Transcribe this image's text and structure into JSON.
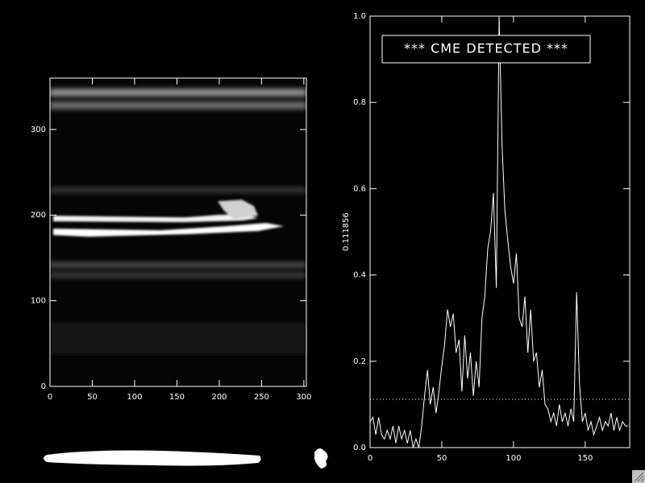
{
  "chart_data": [
    {
      "type": "image",
      "xlim": [
        0,
        303
      ],
      "xticks": [
        0,
        50,
        100,
        150,
        200,
        250,
        300
      ],
      "ylim": [
        0,
        360
      ],
      "yticks": [
        0,
        100,
        200,
        300
      ]
    },
    {
      "type": "line",
      "annotation": "*** CME DETECTED ***",
      "threshold": 0.111856,
      "color": "#ffffff",
      "xlim": [
        0,
        181
      ],
      "xticks": [
        0,
        50,
        100,
        150
      ],
      "ylim": [
        0,
        1
      ],
      "yticks": [
        {
          "value": 0,
          "label": "0.0"
        },
        0.2,
        0.4,
        0.6,
        0.8,
        {
          "value": 1,
          "label": "1.0"
        }
      ],
      "x": [
        0,
        2,
        4,
        6,
        8,
        10,
        12,
        14,
        16,
        18,
        20,
        22,
        24,
        26,
        28,
        30,
        32,
        34,
        36,
        38,
        40,
        42,
        44,
        46,
        48,
        50,
        52,
        54,
        56,
        58,
        60,
        62,
        64,
        66,
        68,
        70,
        72,
        74,
        76,
        78,
        80,
        82,
        84,
        86,
        88,
        90,
        92,
        94,
        96,
        98,
        100,
        102,
        104,
        106,
        108,
        110,
        112,
        114,
        116,
        118,
        120,
        122,
        124,
        126,
        128,
        130,
        132,
        134,
        136,
        138,
        140,
        142,
        144,
        146,
        148,
        150,
        152,
        154,
        156,
        158,
        160,
        162,
        164,
        166,
        168,
        170,
        172,
        174,
        176,
        178,
        180
      ],
      "values": [
        0.06,
        0.07,
        0.03,
        0.07,
        0.03,
        0.02,
        0.04,
        0.02,
        0.05,
        0.01,
        0.05,
        0.02,
        0.04,
        0.01,
        0.04,
        0.0,
        0.02,
        0.0,
        0.05,
        0.12,
        0.18,
        0.1,
        0.14,
        0.08,
        0.13,
        0.19,
        0.24,
        0.32,
        0.28,
        0.31,
        0.22,
        0.25,
        0.13,
        0.26,
        0.16,
        0.22,
        0.12,
        0.2,
        0.14,
        0.3,
        0.35,
        0.46,
        0.5,
        0.59,
        0.37,
        1.0,
        0.7,
        0.55,
        0.48,
        0.42,
        0.38,
        0.45,
        0.3,
        0.28,
        0.35,
        0.22,
        0.32,
        0.2,
        0.22,
        0.14,
        0.18,
        0.1,
        0.09,
        0.06,
        0.08,
        0.05,
        0.1,
        0.06,
        0.08,
        0.05,
        0.09,
        0.06,
        0.36,
        0.15,
        0.06,
        0.08,
        0.04,
        0.06,
        0.03,
        0.05,
        0.07,
        0.04,
        0.06,
        0.05,
        0.08,
        0.04,
        0.07,
        0.04,
        0.06,
        0.05,
        0.05
      ]
    }
  ]
}
